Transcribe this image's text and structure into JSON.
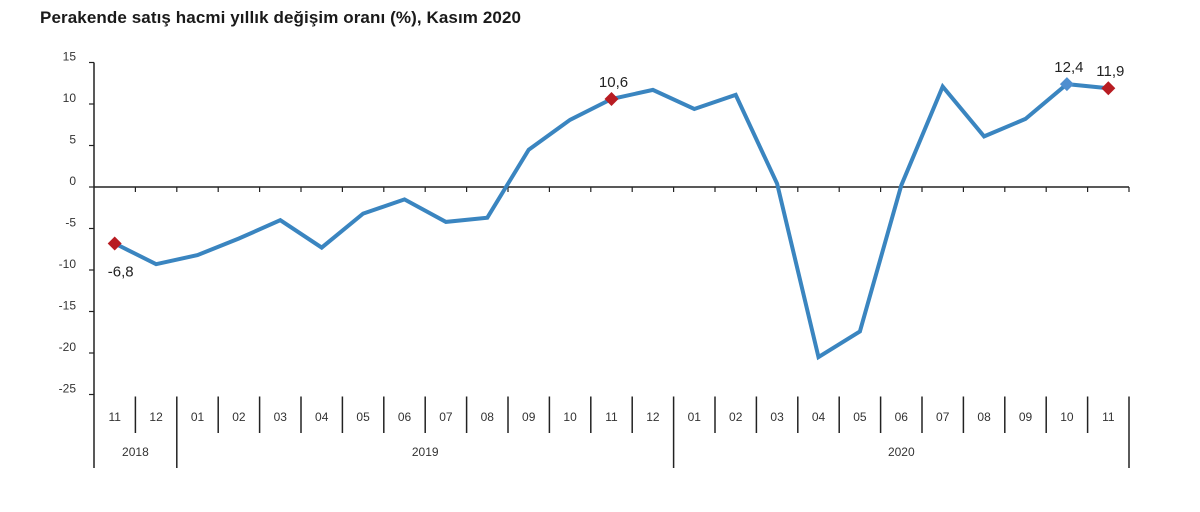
{
  "title": "Perakende satış hacmi yıllık değişim oranı (%), Kasım 2020",
  "colors": {
    "line": "#3a85c0",
    "highlight_marker": "#b81c22",
    "current_marker": "#4f8fd0",
    "axis": "#222222"
  },
  "chart_data": {
    "type": "line",
    "title": "Perakende satış hacmi yıllık değişim oranı (%), Kasım 2020",
    "xlabel": "",
    "ylabel": "",
    "ylim": [
      -25,
      15
    ],
    "yticks": [
      15,
      10,
      5,
      0,
      -5,
      -10,
      -15,
      -20,
      -25
    ],
    "grid": false,
    "legend": null,
    "categories": [
      "11",
      "12",
      "01",
      "02",
      "03",
      "04",
      "05",
      "06",
      "07",
      "08",
      "09",
      "10",
      "11",
      "12",
      "01",
      "02",
      "03",
      "04",
      "05",
      "06",
      "07",
      "08",
      "09",
      "10",
      "11"
    ],
    "year_groups": [
      {
        "label": "2018",
        "start": 0,
        "end": 1
      },
      {
        "label": "2019",
        "start": 2,
        "end": 13
      },
      {
        "label": "2020",
        "start": 14,
        "end": 24
      }
    ],
    "series": [
      {
        "name": "Yıllık değişim oranı (%)",
        "values": [
          -6.8,
          -9.3,
          -8.2,
          -6.2,
          -4.0,
          -7.3,
          -3.2,
          -1.5,
          -4.2,
          -3.7,
          4.5,
          8.1,
          10.6,
          11.7,
          9.4,
          11.1,
          0.4,
          -20.5,
          -17.4,
          0.2,
          12.1,
          6.1,
          8.2,
          12.4,
          11.9
        ]
      }
    ],
    "annotations": [
      {
        "index": 0,
        "text": "-6,8",
        "marker": "red-diamond",
        "position": "below"
      },
      {
        "index": 12,
        "text": "10,6",
        "marker": "red-diamond",
        "position": "above"
      },
      {
        "index": 23,
        "text": "12,4",
        "marker": "blue-diamond",
        "position": "above"
      },
      {
        "index": 24,
        "text": "11,9",
        "marker": "red-diamond",
        "position": "above"
      }
    ]
  }
}
